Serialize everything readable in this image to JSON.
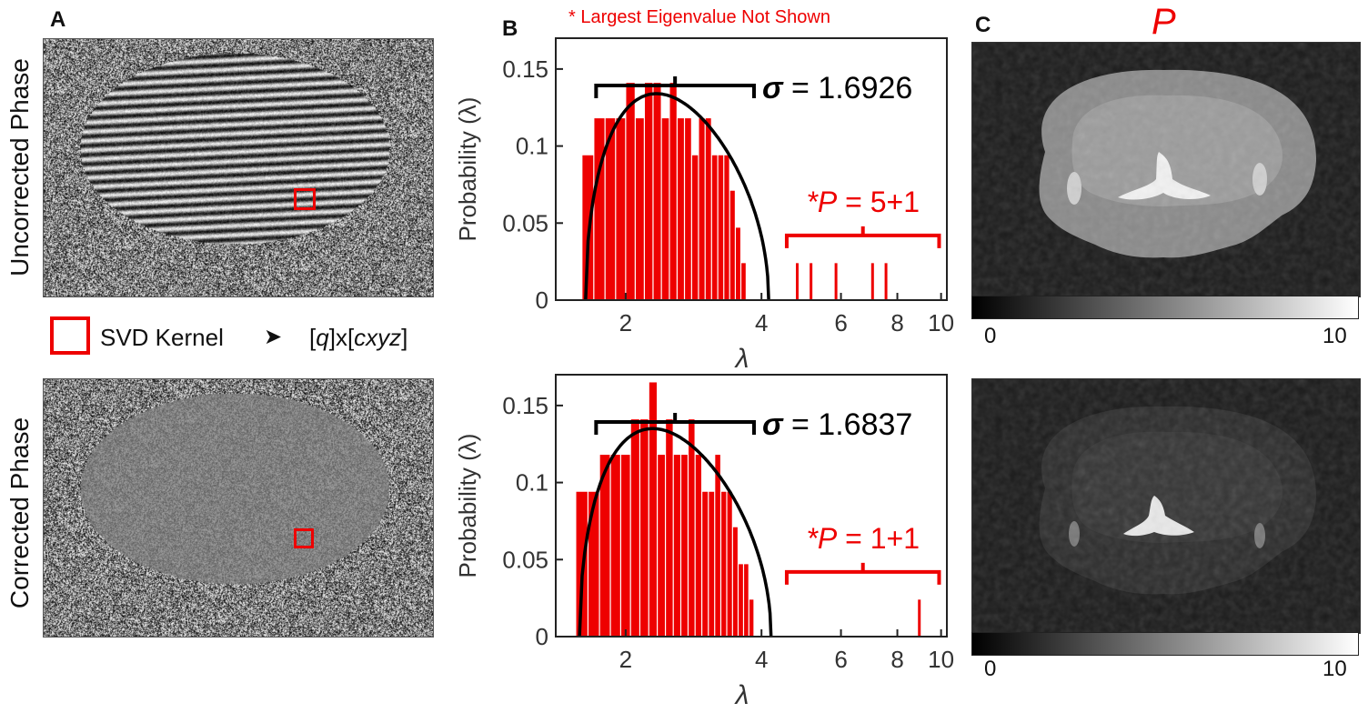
{
  "panels": {
    "a": {
      "letter": "A",
      "top_label": "Uncorrected Phase",
      "bottom_label": "Corrected Phase"
    },
    "b": {
      "letter": "B",
      "note": "* Largest Eigenvalue Not Shown"
    },
    "c": {
      "letter": "C",
      "title": "P",
      "colorbar_min": "0",
      "colorbar_max": "10"
    }
  },
  "legend": {
    "box_label": "SVD Kernel",
    "arrow": "➤",
    "kernel_q": "q",
    "kernel_x": "x",
    "kernel_c": "cxyz"
  },
  "colors": {
    "red": "#ee0000",
    "black": "#000000"
  },
  "chart_data": [
    {
      "type": "bar",
      "name": "uncorrected",
      "xlabel": "λ",
      "ylabel": "Probability (λ)",
      "xlim": [
        1.4,
        10.3
      ],
      "ylim": [
        0,
        0.17
      ],
      "xscale": "log",
      "xticks": [
        2,
        4,
        6,
        8,
        10
      ],
      "yticks": [
        0,
        0.05,
        0.1,
        0.15
      ],
      "ytick_labels": [
        "0",
        "0.05",
        "0.1",
        "0.15"
      ],
      "bin_start": 1.6,
      "bin_width": 0.1,
      "values": [
        0.094,
        0.118,
        0.118,
        0.118,
        0.141,
        0.118,
        0.141,
        0.141,
        0.118,
        0.141,
        0.118,
        0.118,
        0.094,
        0.118,
        0.118,
        0.094,
        0.094,
        0.094,
        0.071,
        0.047,
        0.024
      ],
      "mp_curve": {
        "lo": 1.63,
        "hi": 4.15,
        "peak": 0.134
      },
      "sigma_symbol": "σ",
      "sigma_value": " = 1.6926",
      "p_prefix": "*P",
      "p_value": " = 5+1",
      "spikes": [
        {
          "x": 4.8,
          "y": 0.024
        },
        {
          "x": 5.15,
          "y": 0.024
        },
        {
          "x": 5.85,
          "y": 0.024
        },
        {
          "x": 7.05,
          "y": 0.024
        },
        {
          "x": 7.55,
          "y": 0.024
        }
      ]
    },
    {
      "type": "bar",
      "name": "corrected",
      "xlabel": "λ",
      "ylabel": "Probability (λ)",
      "xlim": [
        1.4,
        10.3
      ],
      "ylim": [
        0,
        0.17
      ],
      "xscale": "log",
      "xticks": [
        2,
        4,
        6,
        8,
        10
      ],
      "yticks": [
        0,
        0.05,
        0.1,
        0.15
      ],
      "ytick_labels": [
        "0",
        "0.05",
        "0.1",
        "0.15"
      ],
      "bin_start": 1.55,
      "bin_width": 0.1,
      "values": [
        0.094,
        0.094,
        0.118,
        0.118,
        0.118,
        0.141,
        0.141,
        0.165,
        0.118,
        0.141,
        0.118,
        0.118,
        0.141,
        0.118,
        0.094,
        0.094,
        0.118,
        0.094,
        0.094,
        0.071,
        0.047,
        0.047,
        0.024
      ],
      "mp_curve": {
        "lo": 1.58,
        "hi": 4.2,
        "peak": 0.135
      },
      "sigma_symbol": "σ",
      "sigma_value": " = 1.6837",
      "p_prefix": "*P",
      "p_value": " = 1+1",
      "spikes": [
        {
          "x": 8.95,
          "y": 0.024
        }
      ]
    }
  ]
}
